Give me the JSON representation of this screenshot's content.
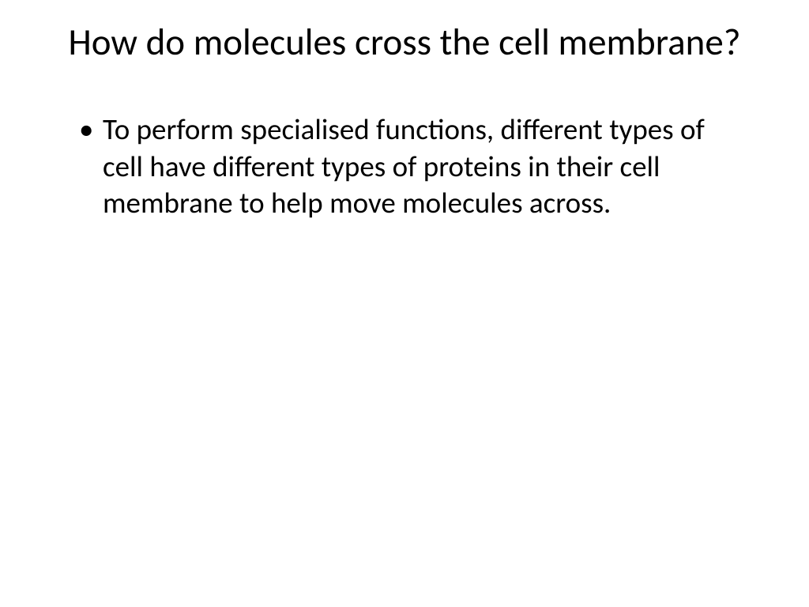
{
  "slide": {
    "title": "How do molecules cross the cell membrane?",
    "bullets": [
      {
        "text": "To perform specialised functions, different types of cell have different types of proteins in their cell membrane to help move molecules across."
      }
    ]
  },
  "styling": {
    "background_color": "#ffffff",
    "text_color": "#000000",
    "title_fontsize": 47,
    "body_fontsize": 37,
    "font_family": "Calibri"
  }
}
